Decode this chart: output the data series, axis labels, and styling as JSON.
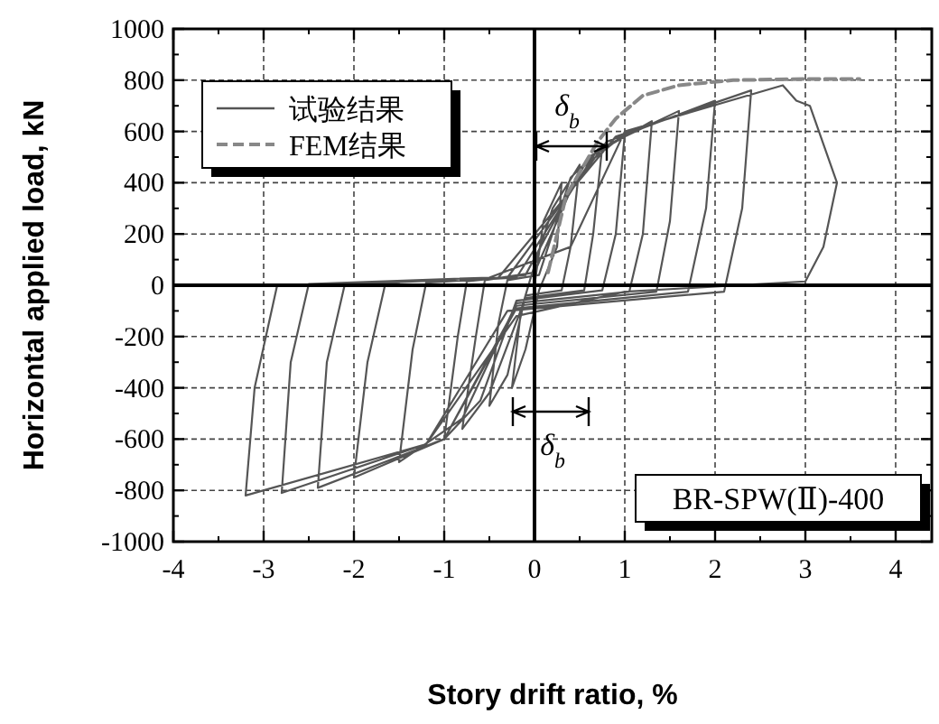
{
  "chart_data": {
    "type": "line",
    "xlabel": "Story drift ratio, %",
    "ylabel": "Horizontal applied load, kN",
    "xlim": [
      -4,
      4.4
    ],
    "xticks": [
      -4,
      -3,
      -2,
      -1,
      0,
      1,
      2,
      3,
      4
    ],
    "ylim": [
      -1000,
      1000
    ],
    "yticks": [
      -1000,
      -800,
      -600,
      -400,
      -200,
      0,
      200,
      400,
      600,
      800,
      1000
    ],
    "grid": true,
    "legend": "top left",
    "line_style": "solid",
    "marker": "none",
    "series": [
      {
        "name": "试验结果",
        "color": "#555555",
        "x": [
          0,
          0.1,
          0.3,
          0.25,
          0.05,
          -0.1,
          -0.25,
          -0.15,
          -0.05,
          0.2,
          0.5,
          0.4,
          0.3,
          -0.1,
          -0.3,
          -0.5,
          -0.4,
          -0.3,
          0.05,
          0.4,
          0.75,
          0.65,
          0.55,
          -0.1,
          -0.5,
          -0.8,
          -0.65,
          -0.55,
          0,
          0.5,
          1.0,
          0.9,
          0.75,
          -0.2,
          -0.6,
          -1.0,
          -0.85,
          -0.75,
          -0.1,
          0.6,
          1.3,
          1.2,
          1.05,
          -0.2,
          -0.8,
          -1.5,
          -1.35,
          -1.2,
          -0.2,
          0.7,
          1.6,
          1.5,
          1.35,
          -0.2,
          -1.0,
          -2.0,
          -1.85,
          -1.65,
          -0.3,
          0.8,
          2.0,
          1.9,
          1.7,
          -0.2,
          -1.0,
          -2.4,
          -2.3,
          -2.1,
          -0.4,
          0.9,
          2.4,
          2.3,
          2.1,
          -0.3,
          -1.2,
          -2.8,
          -2.7,
          -2.5,
          -0.5,
          0.4,
          1.0,
          2.75,
          2.9,
          3.05,
          3.35,
          3.2,
          3.0,
          1.0,
          -0.2,
          -1.2,
          -3.2,
          -3.1,
          -2.85,
          -1.5
        ],
        "values": [
          0,
          250,
          400,
          150,
          -20,
          -250,
          -400,
          -100,
          20,
          300,
          470,
          150,
          -20,
          -40,
          -350,
          -470,
          -150,
          20,
          40,
          420,
          540,
          200,
          -20,
          -50,
          -420,
          -560,
          -200,
          20,
          50,
          450,
          590,
          200,
          -20,
          -60,
          -450,
          -600,
          -200,
          15,
          40,
          500,
          640,
          200,
          -25,
          -70,
          -520,
          -690,
          -250,
          10,
          30,
          530,
          680,
          250,
          -25,
          -80,
          -600,
          -750,
          -300,
          10,
          30,
          560,
          720,
          300,
          -25,
          -90,
          -600,
          -790,
          -300,
          5,
          30,
          580,
          760,
          300,
          -25,
          -100,
          -620,
          -810,
          -300,
          5,
          30,
          150,
          600,
          780,
          720,
          700,
          400,
          150,
          15,
          -25,
          -120,
          -620,
          -820,
          -400,
          0,
          10
        ]
      },
      {
        "name": "FEM结果",
        "color": "#888888",
        "line_style": "dashed",
        "x": [
          0.15,
          0.35,
          0.7,
          0.9,
          1.2,
          1.6,
          2.2,
          3.0,
          3.6
        ],
        "values": [
          50,
          350,
          560,
          650,
          740,
          780,
          800,
          805,
          805
        ]
      }
    ],
    "annotations": [
      "δ$_{b}$",
      "δ$_{b}$",
      "BR-SPW(Ⅱ)-400"
    ]
  }
}
